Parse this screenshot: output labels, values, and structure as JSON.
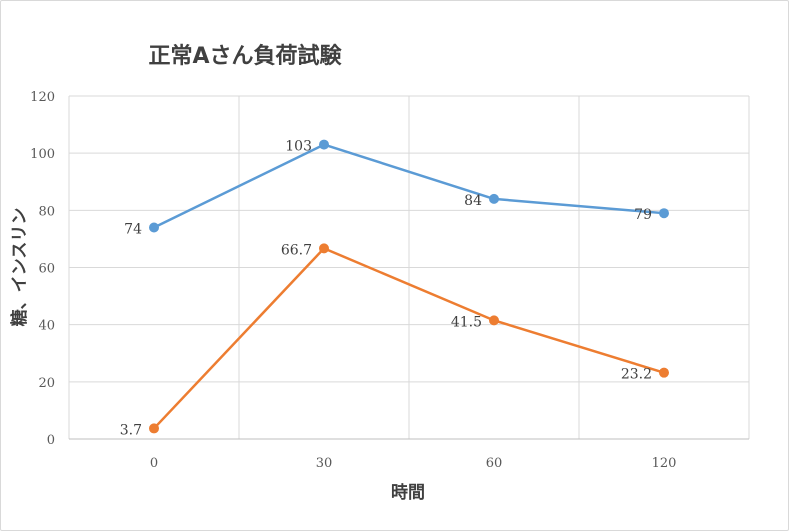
{
  "chart_data": {
    "type": "line",
    "title": "正常Aさん負荷試験",
    "xlabel": "時間",
    "ylabel": "糖、インスリン",
    "categories": [
      "0",
      "30",
      "60",
      "120"
    ],
    "ylim": [
      0,
      120
    ],
    "yticks": [
      0,
      20,
      40,
      60,
      80,
      100,
      120
    ],
    "grid": true,
    "legend": "none",
    "series": [
      {
        "values": [
          74,
          103,
          84,
          79
        ],
        "labels": [
          "74",
          "103",
          "84",
          "79"
        ],
        "color": "#5b9bd5"
      },
      {
        "values": [
          3.7,
          66.7,
          41.5,
          23.2
        ],
        "labels": [
          "3.7",
          "66.7",
          "41.5",
          "23.2"
        ],
        "color": "#ed7d31"
      }
    ]
  }
}
